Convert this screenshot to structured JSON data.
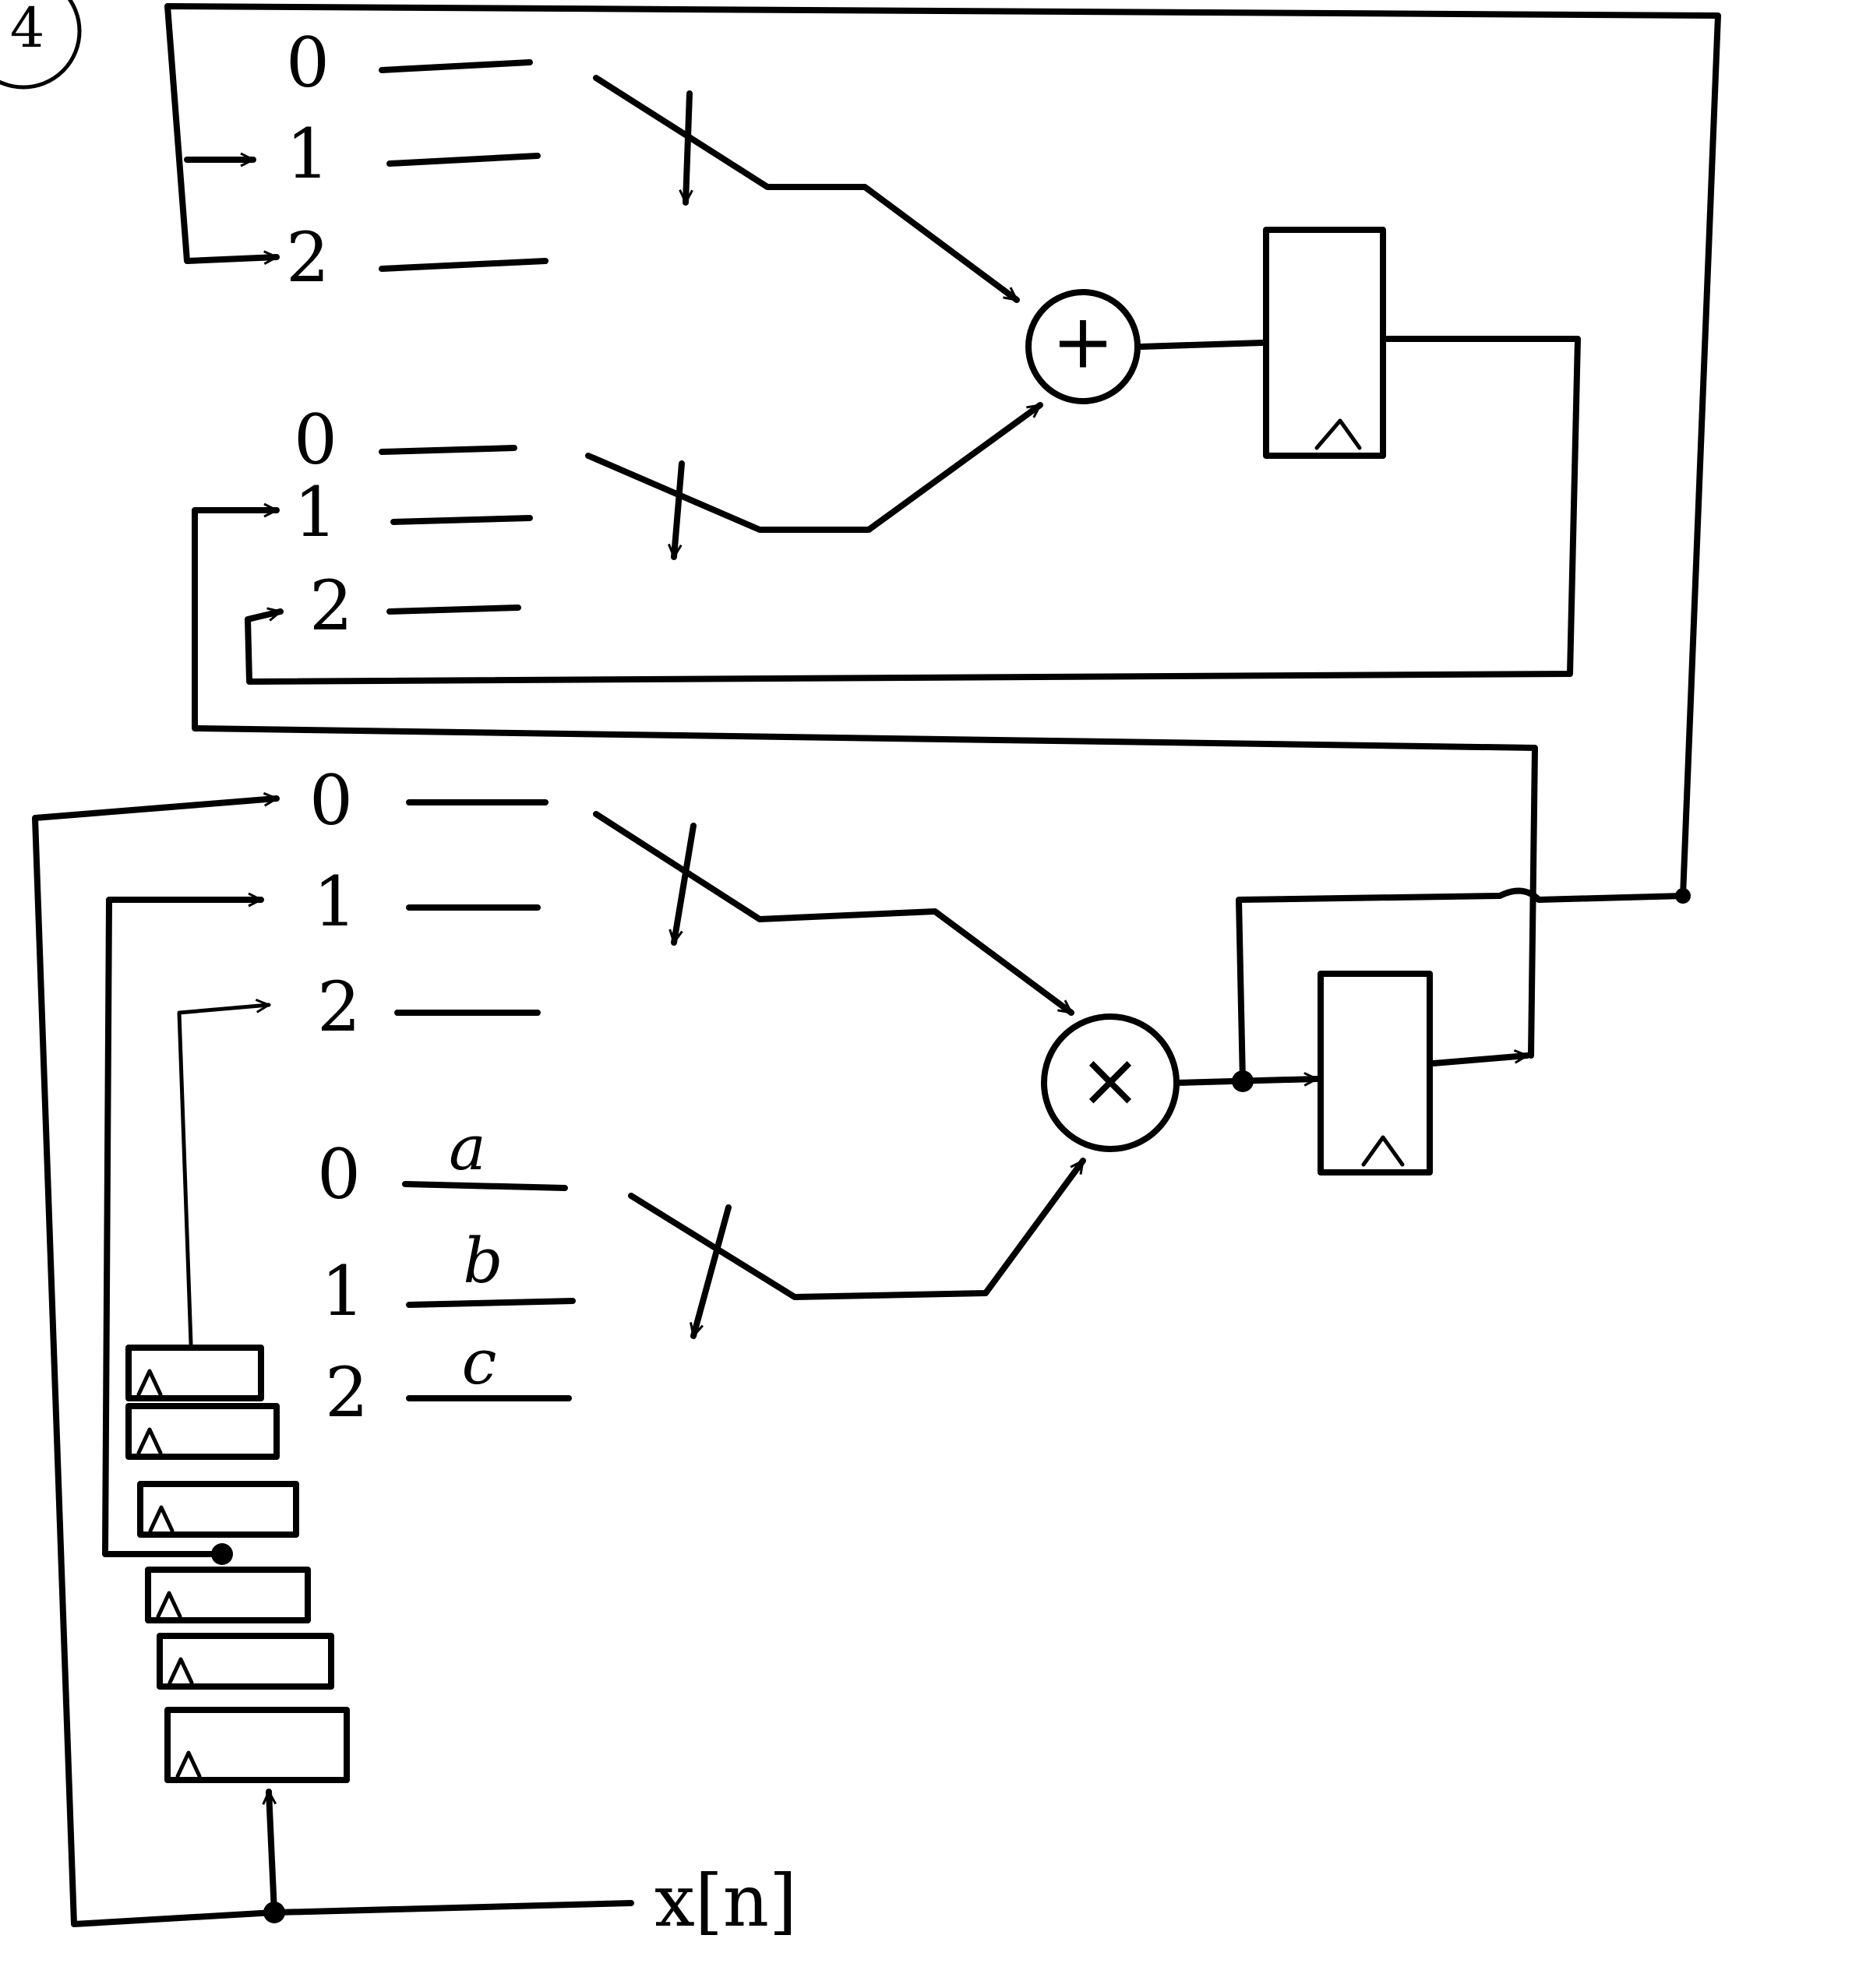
{
  "figure_tag": "4",
  "mux_top_a": {
    "inputs": [
      "0",
      "1",
      "2"
    ]
  },
  "mux_top_b": {
    "inputs": [
      "0",
      "1",
      "2"
    ]
  },
  "mux_mid": {
    "inputs": [
      "0",
      "1",
      "2"
    ]
  },
  "mux_coef": {
    "inputs": [
      "0",
      "1",
      "2"
    ],
    "coefficients": [
      "a",
      "b",
      "c"
    ]
  },
  "adder": {
    "symbol": "+"
  },
  "multiplier": {
    "symbol": "×"
  },
  "input_signal": "x[n]"
}
